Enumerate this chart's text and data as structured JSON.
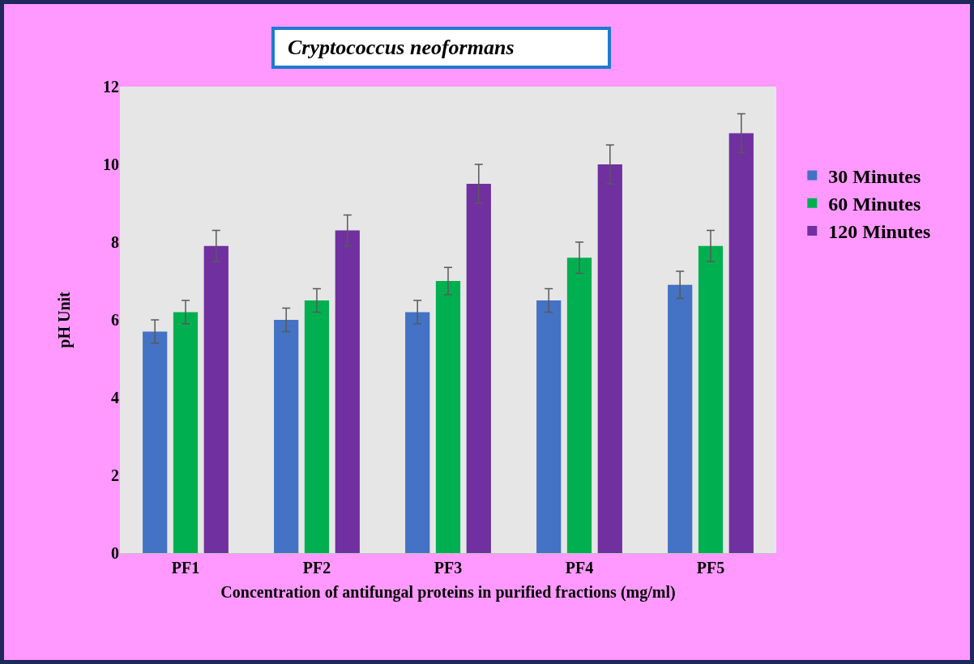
{
  "chart_data": {
    "type": "bar",
    "title": "Cryptococcus neoformans",
    "xlabel": "Concentration of antifungal proteins in purified fractions (mg/ml)",
    "ylabel": "pH Unit",
    "categories": [
      "PF1",
      "PF2",
      "PF3",
      "PF4",
      "PF5"
    ],
    "series": [
      {
        "name": "30 Minutes",
        "color": "#4472c4",
        "values": [
          5.7,
          6.0,
          6.2,
          6.5,
          6.9
        ],
        "errors": [
          0.3,
          0.3,
          0.3,
          0.3,
          0.35
        ]
      },
      {
        "name": "60 Minutes",
        "color": "#00b050",
        "values": [
          6.2,
          6.5,
          7.0,
          7.6,
          7.9
        ],
        "errors": [
          0.3,
          0.3,
          0.35,
          0.4,
          0.4
        ]
      },
      {
        "name": "120 Minutes",
        "color": "#7030a0",
        "values": [
          7.9,
          8.3,
          9.5,
          10.0,
          10.8
        ],
        "errors": [
          0.4,
          0.4,
          0.5,
          0.5,
          0.5
        ]
      }
    ],
    "ylim": [
      0,
      12
    ],
    "yticks": [
      0,
      2,
      4,
      6,
      8,
      10,
      12
    ],
    "grid": false,
    "legend": "right"
  }
}
